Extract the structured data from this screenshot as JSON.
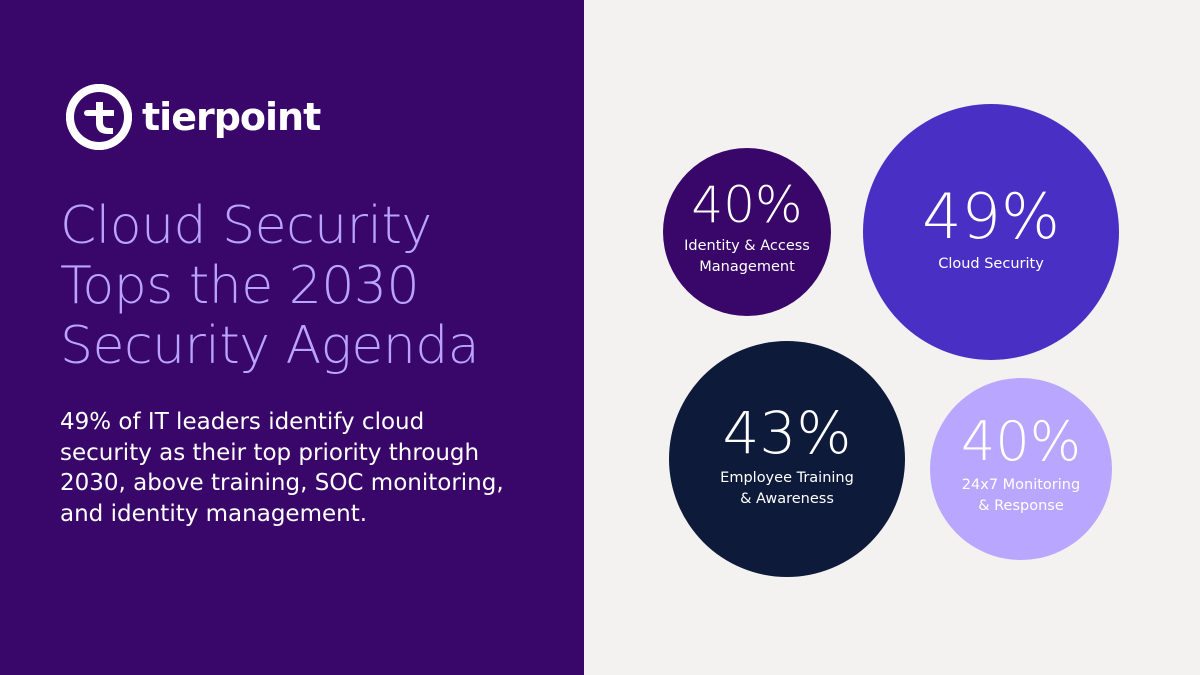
{
  "brand": {
    "name": "tierpoint"
  },
  "headline": {
    "lines": [
      "Cloud Security",
      "Tops the 2030",
      "Security Agenda"
    ]
  },
  "subtext": {
    "lines": [
      "49% of IT leaders identify cloud",
      "security as their top priority through",
      "2030, above training, SOC monitoring,",
      "and identity management."
    ]
  },
  "colors": {
    "left_panel": "#390769",
    "right_panel": "#f3f2f1",
    "headline": "#b9a3ff"
  },
  "chart_data": {
    "type": "bubble",
    "title": "",
    "series": [
      {
        "label_lines": [
          "Identity & Access",
          "Management"
        ],
        "value": 40,
        "display": "40%",
        "color": "#390769",
        "text_color": "#ffffff"
      },
      {
        "label_lines": [
          "Cloud Security"
        ],
        "value": 49,
        "display": "49%",
        "color": "#4a2fc4",
        "text_color": "#ffffff"
      },
      {
        "label_lines": [
          "Employee Training",
          "& Awareness"
        ],
        "value": 43,
        "display": "43%",
        "color": "#0d1a3a",
        "text_color": "#ffffff"
      },
      {
        "label_lines": [
          "24x7 Monitoring",
          "& Response"
        ],
        "value": 40,
        "display": "40%",
        "color": "#b8a6ff",
        "text_color": "#ffffff"
      }
    ]
  }
}
